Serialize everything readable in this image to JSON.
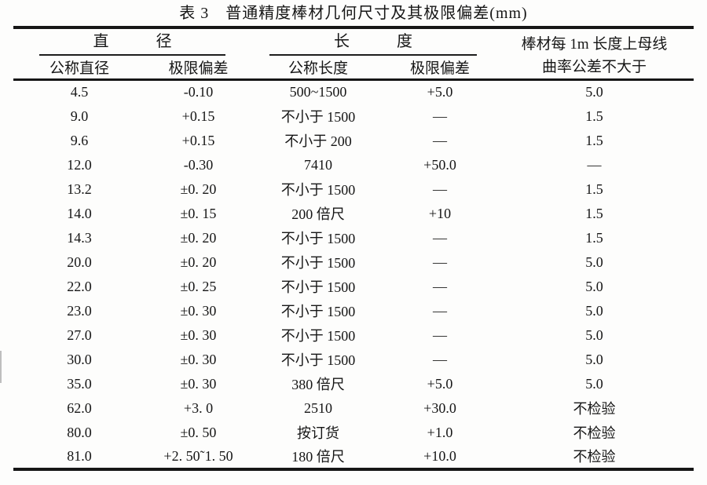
{
  "title": "表 3　普通精度棒材几何尺寸及其极限偏差(mm)",
  "header": {
    "diameter_group": "直　　　径",
    "length_group": "长　　　度",
    "curvature_line1": "棒材每 1m 长度上母线",
    "curvature_line2": "曲率公差不大于",
    "sub": {
      "nominal_diameter": "公称直径",
      "diameter_deviation": "极限偏差",
      "nominal_length": "公称长度",
      "length_deviation": "极限偏差"
    }
  },
  "rows": [
    [
      "4.5",
      "-0.10",
      "500~1500",
      "+5.0",
      "5.0"
    ],
    [
      "9.0",
      "+0.15",
      "不小于 1500",
      "—",
      "1.5"
    ],
    [
      "9.6",
      "+0.15",
      "不小于 200",
      "—",
      "1.5"
    ],
    [
      "12.0",
      "-0.30",
      "7410",
      "+50.0",
      "—"
    ],
    [
      "13.2",
      "±0. 20",
      "不小于 1500",
      "—",
      "1.5"
    ],
    [
      "14.0",
      "±0. 15",
      "200 倍尺",
      "+10",
      "1.5"
    ],
    [
      "14.3",
      "±0. 20",
      "不小于 1500",
      "—",
      "1.5"
    ],
    [
      "20.0",
      "±0. 20",
      "不小于 1500",
      "—",
      "5.0"
    ],
    [
      "22.0",
      "±0. 25",
      "不小于 1500",
      "—",
      "5.0"
    ],
    [
      "23.0",
      "±0. 30",
      "不小于 1500",
      "—",
      "5.0"
    ],
    [
      "27.0",
      "±0. 30",
      "不小于 1500",
      "—",
      "5.0"
    ],
    [
      "30.0",
      "±0. 30",
      "不小于 1500",
      "—",
      "5.0"
    ],
    [
      "35.0",
      "±0. 30",
      "380 倍尺",
      "+5.0",
      "5.0"
    ],
    [
      "62.0",
      "+3. 0",
      "2510",
      "+30.0",
      "不检验"
    ],
    [
      "80.0",
      "±0. 50",
      "按订货",
      "+1.0",
      "不检验"
    ],
    [
      "81.0",
      "+2. 50˜1. 50",
      "180 倍尺",
      "+10.0",
      "不检验"
    ]
  ]
}
